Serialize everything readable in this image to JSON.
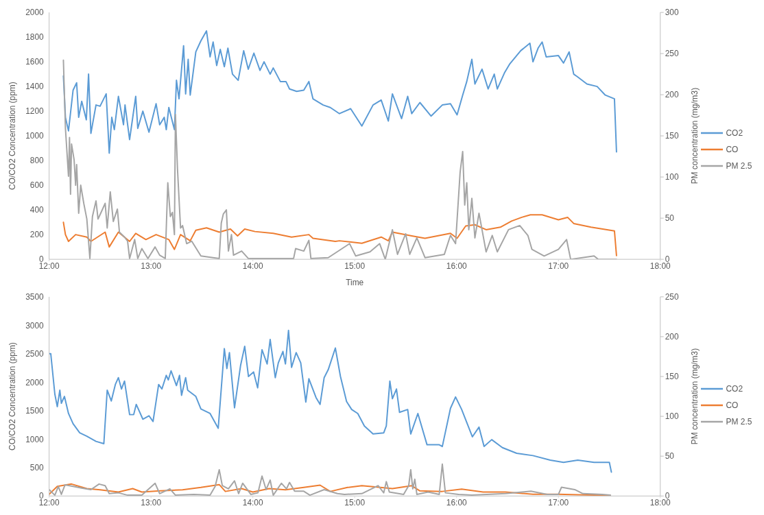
{
  "chart_data": [
    {
      "type": "line",
      "xlabel": "Time",
      "ylabel": "CO/CO2 Concentration (ppm)",
      "y2label": "PM concentration (mg/m3)",
      "xlim": [
        12,
        18
      ],
      "xticks": [
        {
          "value": 12,
          "label": "12:00"
        },
        {
          "value": 13,
          "label": "13:00"
        },
        {
          "value": 14,
          "label": "14:00"
        },
        {
          "value": 15,
          "label": "15:00"
        },
        {
          "value": 16,
          "label": "16:00"
        },
        {
          "value": 17,
          "label": "17:00"
        },
        {
          "value": 18,
          "label": "18:00"
        }
      ],
      "ylim": [
        0,
        2000
      ],
      "yticks": [
        0,
        200,
        400,
        600,
        800,
        1000,
        1200,
        1400,
        1600,
        1800,
        2000
      ],
      "y2lim": [
        0,
        300
      ],
      "y2ticks": [
        0,
        50,
        100,
        150,
        200,
        250,
        300
      ],
      "legend": "right",
      "grid": false,
      "marker": "none",
      "line_style": "solid",
      "series": [
        {
          "name": "CO2",
          "color": "#5b9bd5",
          "x": [
            12.14,
            12.16,
            12.19,
            12.235,
            12.27,
            12.29,
            12.32,
            12.365,
            12.387,
            12.41,
            12.46,
            12.5,
            12.56,
            12.59,
            12.615,
            12.64,
            12.68,
            12.73,
            12.745,
            12.79,
            12.85,
            12.87,
            12.92,
            12.98,
            13.05,
            13.085,
            13.13,
            13.15,
            13.175,
            13.23,
            13.25,
            13.275,
            13.32,
            13.34,
            13.365,
            13.385,
            13.44,
            13.49,
            13.545,
            13.58,
            13.61,
            13.645,
            13.68,
            13.72,
            13.755,
            13.8,
            13.856,
            13.91,
            13.955,
            14.01,
            14.07,
            14.11,
            14.17,
            14.2,
            14.27,
            14.325,
            14.36,
            14.43,
            14.5,
            14.55,
            14.59,
            14.69,
            14.76,
            14.85,
            14.96,
            15.07,
            15.18,
            15.26,
            15.33,
            15.37,
            15.46,
            15.52,
            15.56,
            15.64,
            15.75,
            15.86,
            15.94,
            16.005,
            16.06,
            16.1,
            16.15,
            16.18,
            16.25,
            16.31,
            16.37,
            16.4,
            16.47,
            16.52,
            16.63,
            16.72,
            16.75,
            16.8,
            16.84,
            16.88,
            17.0,
            17.05,
            17.105,
            17.15,
            17.185,
            17.28,
            17.38,
            17.46,
            17.55,
            17.57
          ],
          "values": [
            1485,
            1150,
            1040,
            1370,
            1430,
            1150,
            1280,
            1130,
            1500,
            1020,
            1250,
            1240,
            1340,
            860,
            1150,
            1050,
            1320,
            1090,
            1250,
            970,
            1320,
            1060,
            1200,
            1030,
            1260,
            1090,
            1150,
            1050,
            1230,
            1050,
            1450,
            1300,
            1730,
            1340,
            1620,
            1330,
            1680,
            1770,
            1850,
            1640,
            1760,
            1570,
            1700,
            1560,
            1710,
            1500,
            1450,
            1690,
            1540,
            1670,
            1530,
            1600,
            1500,
            1550,
            1440,
            1440,
            1380,
            1360,
            1370,
            1440,
            1300,
            1250,
            1230,
            1180,
            1220,
            1080,
            1250,
            1290,
            1120,
            1340,
            1140,
            1320,
            1180,
            1270,
            1160,
            1250,
            1260,
            1170,
            1330,
            1440,
            1620,
            1420,
            1540,
            1380,
            1500,
            1380,
            1510,
            1580,
            1690,
            1750,
            1600,
            1710,
            1760,
            1640,
            1650,
            1590,
            1680,
            1500,
            1480,
            1420,
            1400,
            1330,
            1300,
            870
          ]
        },
        {
          "name": "CO",
          "color": "#ed7d31",
          "x": [
            12.14,
            12.16,
            12.19,
            12.26,
            12.37,
            12.41,
            12.55,
            12.59,
            12.68,
            12.79,
            12.85,
            12.95,
            13.05,
            13.175,
            13.23,
            13.29,
            13.385,
            13.44,
            13.545,
            13.67,
            13.78,
            13.85,
            13.92,
            14.02,
            14.2,
            14.38,
            14.55,
            14.59,
            14.81,
            14.85,
            15.07,
            15.26,
            15.33,
            15.37,
            15.56,
            15.69,
            15.94,
            16.005,
            16.09,
            16.18,
            16.29,
            16.43,
            16.54,
            16.64,
            16.725,
            16.84,
            17.0,
            17.09,
            17.15,
            17.32,
            17.55,
            17.57
          ],
          "values": [
            300,
            200,
            145,
            200,
            180,
            145,
            220,
            100,
            220,
            145,
            210,
            160,
            200,
            160,
            80,
            200,
            150,
            235,
            255,
            220,
            245,
            190,
            245,
            225,
            210,
            180,
            200,
            170,
            145,
            150,
            130,
            180,
            150,
            220,
            190,
            170,
            210,
            170,
            270,
            280,
            240,
            260,
            310,
            340,
            360,
            360,
            320,
            340,
            290,
            260,
            230,
            30
          ]
        },
        {
          "name": "PM 2.5",
          "color": "#a5a5a5",
          "axis": "y2",
          "x": [
            12.14,
            12.16,
            12.19,
            12.2,
            12.21,
            12.22,
            12.245,
            12.26,
            12.27,
            12.29,
            12.31,
            12.34,
            12.37,
            12.4,
            12.425,
            12.46,
            12.48,
            12.51,
            12.55,
            12.57,
            12.6,
            12.63,
            12.67,
            12.69,
            12.74,
            12.77,
            12.79,
            12.84,
            12.87,
            12.91,
            12.97,
            13.04,
            13.085,
            13.14,
            13.165,
            13.19,
            13.21,
            13.23,
            13.24,
            13.26,
            13.29,
            13.31,
            13.35,
            13.4,
            13.49,
            13.67,
            13.69,
            13.71,
            13.74,
            13.76,
            13.79,
            13.81,
            13.89,
            13.955,
            14.4,
            14.42,
            14.5,
            14.55,
            14.57,
            14.74,
            14.95,
            15.01,
            15.15,
            15.245,
            15.3,
            15.37,
            15.42,
            15.5,
            15.54,
            15.61,
            15.69,
            15.88,
            15.94,
            15.99,
            16.035,
            16.06,
            16.08,
            16.1,
            16.12,
            16.15,
            16.18,
            16.22,
            16.29,
            16.35,
            16.4,
            16.51,
            16.62,
            16.7,
            16.74,
            16.86,
            17.0,
            17.08,
            17.12,
            17.35,
            17.39,
            17.57
          ],
          "values": [
            242,
            159,
            101,
            148,
            79,
            140,
            121,
            90,
            115,
            56,
            90,
            68,
            49,
            1,
            52,
            71,
            49,
            57,
            68,
            38,
            82,
            46,
            61,
            33,
            27,
            22,
            1,
            24,
            1,
            13,
            1,
            15,
            5,
            1,
            93,
            52,
            57,
            30,
            176,
            110,
            38,
            41,
            19,
            22,
            4,
            1,
            44,
            55,
            60,
            10,
            30,
            5,
            10,
            1,
            1,
            13,
            10,
            23,
            1,
            2,
            19,
            4,
            9,
            19,
            0,
            36,
            6,
            31,
            6,
            26,
            2,
            6,
            29,
            19,
            106,
            131,
            66,
            93,
            36,
            74,
            26,
            56,
            9,
            29,
            9,
            36,
            41,
            29,
            12,
            4,
            12,
            24,
            0,
            4,
            0,
            0
          ]
        }
      ]
    },
    {
      "type": "line",
      "ylabel": "CO/CO2 Concentration (ppm)",
      "y2label": "PM concentration (mg/m3)",
      "xlim": [
        12,
        18
      ],
      "xticks": [
        {
          "value": 12,
          "label": "12:00"
        },
        {
          "value": 13,
          "label": "13:00"
        },
        {
          "value": 14,
          "label": "14:00"
        },
        {
          "value": 15,
          "label": "15:00"
        },
        {
          "value": 16,
          "label": "16:00"
        },
        {
          "value": 17,
          "label": "17:00"
        },
        {
          "value": 18,
          "label": "18:00"
        }
      ],
      "ylim": [
        0,
        3500
      ],
      "yticks": [
        0,
        500,
        1000,
        1500,
        2000,
        2500,
        3000,
        3500
      ],
      "y2lim": [
        0,
        250
      ],
      "y2ticks": [
        0,
        50,
        100,
        150,
        200,
        250
      ],
      "legend": "right",
      "grid": false,
      "marker": "none",
      "line_style": "solid",
      "series": [
        {
          "name": "CO2",
          "color": "#5b9bd5",
          "x": [
            12.0,
            12.016,
            12.056,
            12.08,
            12.105,
            12.12,
            12.15,
            12.19,
            12.235,
            12.3,
            12.37,
            12.46,
            12.537,
            12.57,
            12.61,
            12.65,
            12.68,
            12.71,
            12.74,
            12.79,
            12.83,
            12.855,
            12.92,
            12.98,
            13.02,
            13.075,
            13.107,
            13.15,
            13.17,
            13.197,
            13.25,
            13.28,
            13.3,
            13.34,
            13.36,
            13.44,
            13.49,
            13.58,
            13.66,
            13.72,
            13.745,
            13.77,
            13.82,
            13.88,
            13.92,
            13.957,
            14.007,
            14.047,
            14.09,
            14.14,
            14.17,
            14.22,
            14.25,
            14.295,
            14.32,
            14.35,
            14.38,
            14.425,
            14.47,
            14.52,
            14.55,
            14.62,
            14.66,
            14.7,
            14.74,
            14.81,
            14.86,
            14.92,
            14.97,
            15.03,
            15.095,
            15.18,
            15.285,
            15.31,
            15.345,
            15.37,
            15.41,
            15.44,
            15.52,
            15.55,
            15.62,
            15.71,
            15.83,
            15.86,
            15.94,
            15.99,
            16.05,
            16.155,
            16.22,
            16.27,
            16.345,
            16.45,
            16.59,
            16.75,
            16.92,
            17.05,
            17.19,
            17.35,
            17.5,
            17.52
          ],
          "values": [
            2500,
            2500,
            1790,
            1570,
            1860,
            1630,
            1750,
            1450,
            1270,
            1110,
            1050,
            960,
            920,
            1860,
            1670,
            1960,
            2080,
            1880,
            2020,
            1430,
            1430,
            1610,
            1350,
            1410,
            1310,
            1960,
            1880,
            2120,
            2040,
            2200,
            1940,
            2120,
            1770,
            2080,
            1860,
            1750,
            1530,
            1450,
            1190,
            2590,
            2240,
            2520,
            1550,
            2300,
            2630,
            2100,
            2180,
            1900,
            2570,
            2320,
            2750,
            2080,
            2340,
            2540,
            2320,
            2910,
            2260,
            2520,
            2340,
            1650,
            2060,
            1730,
            1610,
            2080,
            2220,
            2600,
            2100,
            1660,
            1520,
            1450,
            1230,
            1090,
            1110,
            1230,
            2020,
            1710,
            1880,
            1470,
            1520,
            1090,
            1450,
            900,
            900,
            870,
            1540,
            1740,
            1520,
            1040,
            1210,
            870,
            990,
            850,
            750,
            710,
            630,
            590,
            630,
            590,
            590,
            420
          ]
        },
        {
          "name": "CO",
          "color": "#ed7d31",
          "x": [
            12.0,
            12.08,
            12.22,
            12.37,
            12.5,
            12.68,
            12.82,
            12.91,
            13.09,
            13.31,
            13.49,
            13.67,
            13.73,
            13.89,
            14.0,
            14.16,
            14.32,
            14.5,
            14.66,
            14.76,
            14.93,
            15.07,
            15.2,
            15.37,
            15.56,
            15.64,
            15.86,
            16.05,
            16.26,
            16.48,
            16.75,
            17.0,
            17.19,
            17.51
          ],
          "values": [
            30,
            170,
            210,
            130,
            110,
            70,
            130,
            70,
            90,
            110,
            150,
            200,
            80,
            130,
            70,
            130,
            110,
            150,
            190,
            80,
            150,
            180,
            160,
            130,
            180,
            90,
            80,
            120,
            70,
            70,
            30,
            30,
            20,
            10
          ]
        },
        {
          "name": "PM 2.5",
          "color": "#a5a5a5",
          "axis": "y2",
          "x": [
            12.0,
            12.056,
            12.09,
            12.12,
            12.156,
            12.235,
            12.32,
            12.41,
            12.49,
            12.55,
            12.59,
            12.68,
            12.77,
            12.91,
            13.04,
            13.085,
            13.185,
            13.24,
            13.42,
            13.58,
            13.63,
            13.67,
            13.7,
            13.76,
            13.82,
            13.86,
            13.9,
            13.98,
            14.05,
            14.09,
            14.13,
            14.17,
            14.2,
            14.28,
            14.33,
            14.36,
            14.41,
            14.5,
            14.56,
            14.7,
            14.83,
            14.9,
            15.07,
            15.23,
            15.285,
            15.31,
            15.34,
            15.48,
            15.53,
            15.55,
            15.57,
            15.59,
            15.61,
            15.72,
            15.83,
            15.86,
            15.89,
            16.02,
            16.15,
            16.48,
            16.73,
            16.89,
            17.0,
            17.03,
            17.16,
            17.24,
            17.43,
            17.51
          ],
          "values": [
            8,
            1,
            12,
            2,
            14,
            12,
            10,
            8,
            15,
            13,
            3,
            4,
            1,
            1,
            16,
            3,
            9,
            1,
            2,
            1,
            12,
            33,
            13,
            9,
            19,
            3,
            16,
            2,
            4,
            25,
            8,
            20,
            1,
            16,
            9,
            17,
            6,
            6,
            1,
            8,
            3,
            2,
            3,
            13,
            4,
            18,
            5,
            2,
            13,
            33,
            9,
            21,
            2,
            5,
            2,
            40,
            4,
            2,
            1,
            3,
            6,
            2,
            2,
            11,
            8,
            3,
            2,
            1
          ]
        }
      ]
    }
  ]
}
